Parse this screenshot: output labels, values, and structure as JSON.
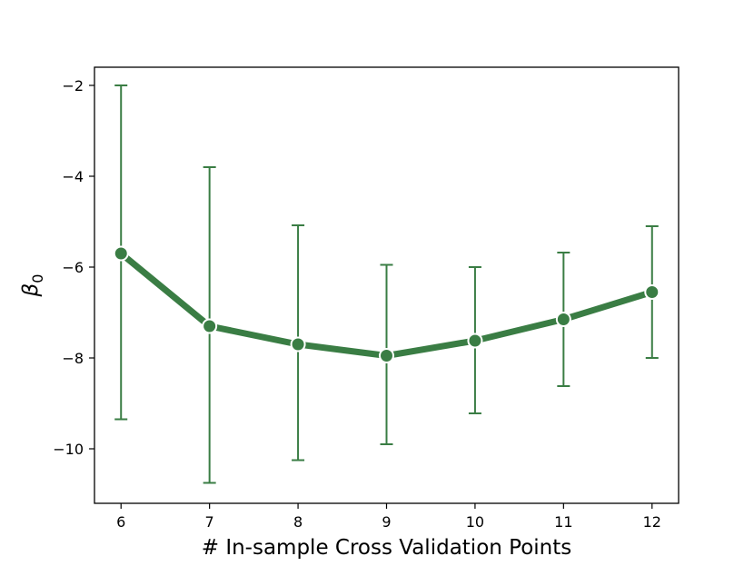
{
  "chart_data": {
    "type": "line",
    "title": "",
    "xlabel": "# In-sample Cross Validation Points",
    "ylabel_symbol": "β",
    "ylabel_subscript": "0",
    "x": [
      6,
      7,
      8,
      9,
      10,
      11,
      12
    ],
    "series": [
      {
        "name": "beta_0",
        "values": [
          -5.7,
          -7.3,
          -7.7,
          -7.95,
          -7.62,
          -7.15,
          -6.55
        ],
        "error_lower": [
          -9.35,
          -10.75,
          -10.25,
          -9.9,
          -9.22,
          -8.62,
          -8.0
        ],
        "error_upper": [
          -2.0,
          -3.8,
          -5.08,
          -5.95,
          -6.0,
          -5.68,
          -5.1
        ]
      }
    ],
    "xlim": [
      5.7,
      12.3
    ],
    "ylim": [
      -11.2,
      -1.6
    ],
    "xticks": [
      "6",
      "7",
      "8",
      "9",
      "10",
      "11",
      "12"
    ],
    "yticks": [
      -10,
      -8,
      -6,
      -4,
      -2
    ],
    "ytick_labels": [
      "−10",
      "−8",
      "−6",
      "−4",
      "−2"
    ],
    "grid": false,
    "line_color": "#3a7d44",
    "marker_edge_color": "#ffffff"
  }
}
